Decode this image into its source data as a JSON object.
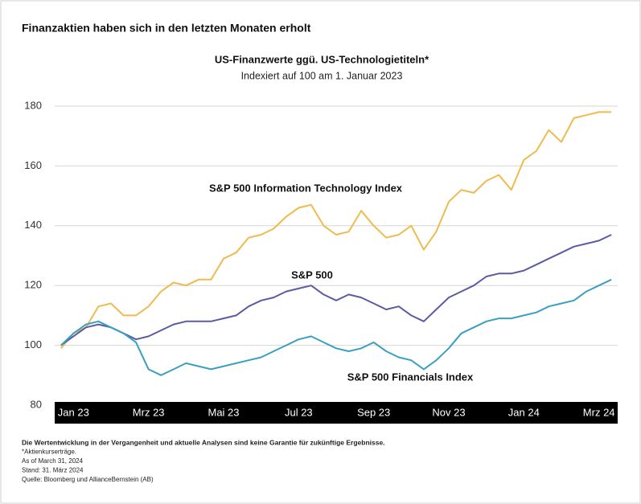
{
  "header": {
    "title": "Finanzaktien haben sich in den letzten Monaten erholt"
  },
  "chart_data": {
    "type": "line",
    "title": "US-Finanzwerte ggü. US-Technologietiteln*",
    "subtitle": "Indexiert auf 100 am 1. Januar 2023",
    "categories": [
      null,
      "Jan 23",
      null,
      null,
      null,
      null,
      null,
      "Mrz 23",
      null,
      null,
      null,
      null,
      null,
      "Mai 23",
      null,
      null,
      null,
      null,
      null,
      "Jul 23",
      null,
      null,
      null,
      null,
      null,
      "Sep 23",
      null,
      null,
      null,
      null,
      null,
      "Nov 23",
      null,
      null,
      null,
      null,
      null,
      "Jan 24",
      null,
      null,
      null,
      null,
      null,
      "Mrz 24",
      null
    ],
    "series": [
      {
        "name": "S&P 500 Information Technology Index",
        "color": "#efbb4e",
        "values": [
          99,
          104,
          106,
          113,
          114,
          110,
          110,
          113,
          118,
          121,
          120,
          122,
          122,
          129,
          131,
          136,
          137,
          139,
          143,
          146,
          147,
          140,
          137,
          138,
          145,
          140,
          136,
          137,
          140,
          132,
          138,
          148,
          152,
          151,
          155,
          157,
          152,
          162,
          165,
          172,
          168,
          176,
          177,
          178,
          178
        ]
      },
      {
        "name": "S&P 500",
        "color": "#5a5ba3",
        "values": [
          100,
          103,
          106,
          107,
          106,
          104,
          102,
          103,
          105,
          107,
          108,
          108,
          108,
          109,
          110,
          113,
          115,
          116,
          118,
          119,
          120,
          117,
          115,
          117,
          116,
          114,
          112,
          113,
          110,
          108,
          112,
          116,
          118,
          120,
          123,
          124,
          124,
          125,
          127,
          129,
          131,
          133,
          134,
          135,
          137
        ]
      },
      {
        "name": "S&P 500 Financials Index",
        "color": "#3aa0c2",
        "values": [
          100,
          104,
          107,
          108,
          106,
          104,
          101,
          92,
          90,
          92,
          94,
          93,
          92,
          93,
          94,
          95,
          96,
          98,
          100,
          102,
          103,
          101,
          99,
          98,
          99,
          101,
          98,
          96,
          95,
          92,
          95,
          99,
          104,
          106,
          108,
          109,
          109,
          110,
          111,
          113,
          114,
          115,
          118,
          120,
          122
        ]
      }
    ],
    "ylim": [
      80,
      185
    ],
    "yticks": [
      80,
      100,
      120,
      140,
      160,
      180
    ],
    "grid": true
  },
  "footnotes": [
    "Die Wertentwicklung in der Vergangenheit und aktuelle Analysen sind keine Garantie für zukünftige Ergebnisse.",
    "*Aktienkurserträge.",
    "As of March 31, 2024",
    "Stand: 31. März 2024",
    "Quelle: Bloomberg und AllianceBernstein (AB)"
  ]
}
